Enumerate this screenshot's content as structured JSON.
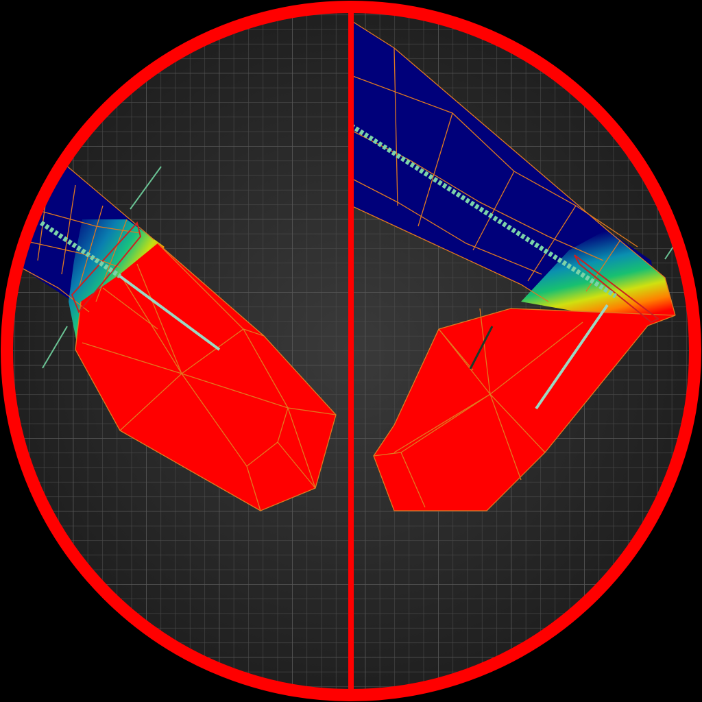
{
  "viewport": {
    "background": "#000000",
    "ring_color": "#ff0000",
    "divider_color": "#ff0000",
    "grid_color": "#4a4a4a",
    "grid_bg_center": "#3a3a3a",
    "grid_bg_edge": "#1c1c1c"
  },
  "panels": [
    {
      "name": "left-viewport",
      "view": "before"
    },
    {
      "name": "right-viewport",
      "view": "after"
    }
  ],
  "weight_map": {
    "low_color": "#00007a",
    "mid_colors": [
      "#0aa0b0",
      "#27c450",
      "#e0e000"
    ],
    "high_color": "#ff0000",
    "wire_color": "#e07a20"
  },
  "bone_colors": {
    "main": "#9ad9c4",
    "dashed": "#7bd3a9",
    "selected": "#cc2020"
  }
}
